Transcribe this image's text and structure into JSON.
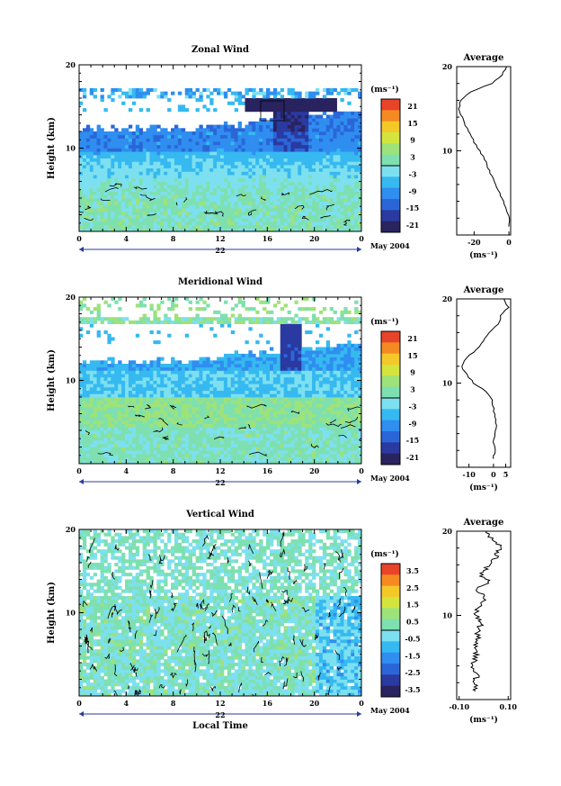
{
  "chart_data": [
    {
      "type": "heatmap",
      "title": "Zonal Wind",
      "ylabel": "Height (km)",
      "y_ticks": [
        "20",
        "10"
      ],
      "x_ticks": [
        "0",
        "4",
        "8",
        "12",
        "16",
        "20",
        "0"
      ],
      "day_label": "22",
      "date_label": "May 2004",
      "colorbar": {
        "unit": "(ms⁻¹)",
        "ticks": [
          "21",
          "15",
          "9",
          "3",
          "-3",
          "-9",
          "-15",
          "-21"
        ]
      },
      "profile": {
        "title": "Average",
        "y_ticks": [
          "20",
          "10"
        ],
        "x_ticks": [
          "-20",
          "0"
        ],
        "xlabel": "(ms⁻¹)",
        "xlim": [
          -30,
          1
        ],
        "points": [
          [
            -0.3,
            1
          ],
          [
            0.5,
            2
          ],
          [
            -1.5,
            3
          ],
          [
            -3.5,
            4
          ],
          [
            -5.5,
            5
          ],
          [
            -8,
            6
          ],
          [
            -10,
            7
          ],
          [
            -12,
            8
          ],
          [
            -14,
            9
          ],
          [
            -17,
            10
          ],
          [
            -20,
            11
          ],
          [
            -22,
            12
          ],
          [
            -25,
            13
          ],
          [
            -27,
            14
          ],
          [
            -28.5,
            15
          ],
          [
            -28,
            16
          ],
          [
            -22,
            17
          ],
          [
            -10,
            18
          ],
          [
            -4,
            19
          ],
          [
            -1,
            20
          ]
        ]
      }
    },
    {
      "type": "heatmap",
      "title": "Meridional Wind",
      "ylabel": "Height (km)",
      "y_ticks": [
        "20",
        "10"
      ],
      "x_ticks": [
        "0",
        "4",
        "8",
        "12",
        "16",
        "20",
        "0"
      ],
      "day_label": "22",
      "date_label": "May 2004",
      "colorbar": {
        "unit": "(ms⁻¹)",
        "ticks": [
          "21",
          "15",
          "9",
          "3",
          "-3",
          "-9",
          "-15",
          "-21"
        ]
      },
      "profile": {
        "title": "Average",
        "y_ticks": [
          "20",
          "10"
        ],
        "x_ticks": [
          "-10",
          "0",
          "5"
        ],
        "xlabel": "(ms⁻¹)",
        "xlim": [
          -15,
          7
        ],
        "points": [
          [
            0,
            1
          ],
          [
            0.5,
            2
          ],
          [
            0,
            3
          ],
          [
            0.5,
            4
          ],
          [
            1,
            5
          ],
          [
            0.5,
            6
          ],
          [
            0,
            7
          ],
          [
            -0.5,
            8
          ],
          [
            -3,
            9
          ],
          [
            -8,
            10
          ],
          [
            -11,
            11
          ],
          [
            -13,
            12
          ],
          [
            -11,
            13
          ],
          [
            -7,
            14
          ],
          [
            -4,
            15
          ],
          [
            -2,
            16
          ],
          [
            2,
            17
          ],
          [
            3,
            18
          ],
          [
            6,
            19
          ],
          [
            4,
            20
          ]
        ]
      }
    },
    {
      "type": "heatmap",
      "title": "Vertical Wind",
      "ylabel": "Height (km)",
      "y_ticks": [
        "20",
        "10"
      ],
      "x_ticks": [
        "0",
        "4",
        "8",
        "12",
        "16",
        "20",
        "0"
      ],
      "day_label": "22",
      "date_label": "May 2004",
      "xlabel": "Local Time",
      "colorbar": {
        "unit": "(ms⁻¹)",
        "ticks": [
          "3.5",
          "2.5",
          "1.5",
          "0.5",
          "-0.5",
          "-1.5",
          "-2.5",
          "-3.5"
        ]
      },
      "profile": {
        "title": "Average",
        "y_ticks": [
          "20",
          "10"
        ],
        "x_ticks": [
          "-0.10",
          "0.10"
        ],
        "xlabel": "(ms⁻¹)",
        "xlim": [
          -0.11,
          0.11
        ],
        "points": [
          [
            -0.03,
            1
          ],
          [
            -0.04,
            2
          ],
          [
            -0.02,
            3
          ],
          [
            -0.05,
            4
          ],
          [
            -0.03,
            5
          ],
          [
            -0.04,
            6
          ],
          [
            -0.02,
            7
          ],
          [
            -0.03,
            8
          ],
          [
            -0.01,
            9
          ],
          [
            -0.03,
            10
          ],
          [
            -0.02,
            11
          ],
          [
            0.01,
            12
          ],
          [
            -0.03,
            13
          ],
          [
            0.02,
            14
          ],
          [
            -0.02,
            15
          ],
          [
            0.03,
            16
          ],
          [
            0.05,
            17
          ],
          [
            0.07,
            18
          ],
          [
            0.04,
            19
          ],
          [
            0.01,
            20
          ]
        ]
      }
    }
  ]
}
